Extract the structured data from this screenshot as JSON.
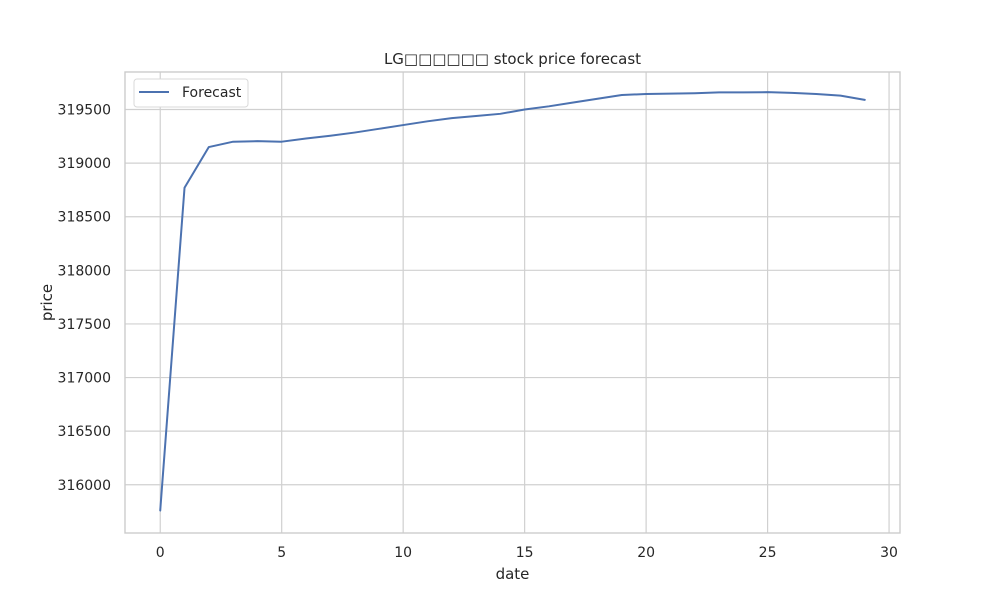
{
  "chart_data": {
    "type": "line",
    "title": "LG□□□□□□ stock price forecast",
    "xlabel": "date",
    "ylabel": "price",
    "xlim": [
      -1.45,
      30.45
    ],
    "ylim": [
      315550,
      319850
    ],
    "x_ticks": [
      0,
      5,
      10,
      15,
      20,
      25,
      30
    ],
    "y_ticks": [
      316000,
      316500,
      317000,
      317500,
      318000,
      318500,
      319000,
      319500
    ],
    "grid": true,
    "legend_position": "upper-left",
    "series": [
      {
        "name": "Forecast",
        "color": "#4c72b0",
        "x": [
          0,
          1,
          2,
          3,
          4,
          5,
          6,
          7,
          8,
          9,
          10,
          11,
          12,
          13,
          14,
          15,
          16,
          17,
          18,
          19,
          20,
          21,
          22,
          23,
          24,
          25,
          26,
          27,
          28,
          29
        ],
        "values": [
          315760,
          318770,
          319150,
          319200,
          319205,
          319200,
          319230,
          319255,
          319285,
          319320,
          319355,
          319390,
          319420,
          319440,
          319460,
          319500,
          319530,
          319565,
          319600,
          319635,
          319645,
          319648,
          319652,
          319660,
          319660,
          319662,
          319655,
          319645,
          319630,
          319590
        ]
      }
    ]
  }
}
